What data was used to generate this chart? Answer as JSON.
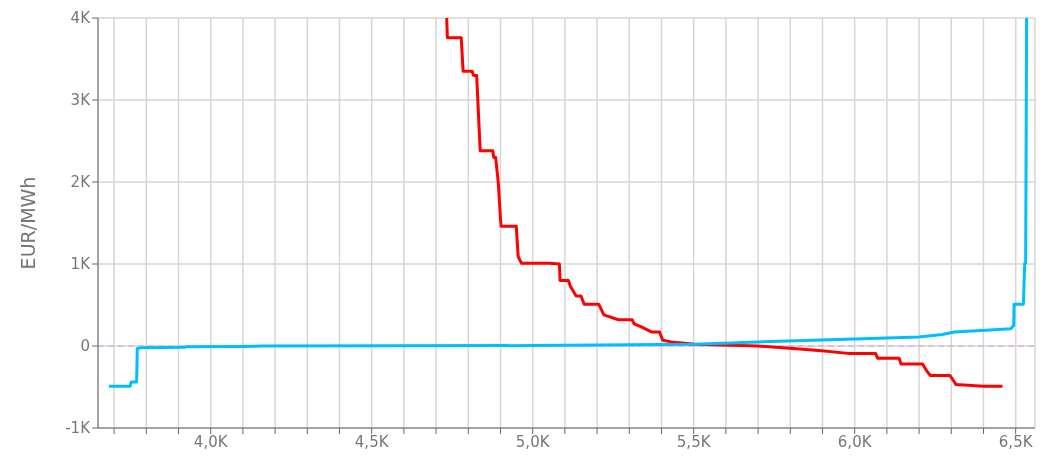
{
  "chart_data": {
    "type": "line",
    "ylabel": "EUR/MWh",
    "grid": true,
    "xlim": [
      3650,
      6560
    ],
    "xticks": [
      {
        "value": 3700,
        "label": null
      },
      {
        "value": 3800,
        "label": null
      },
      {
        "value": 3900,
        "label": null
      },
      {
        "value": 4000,
        "label": "4,0K"
      },
      {
        "value": 4100,
        "label": null
      },
      {
        "value": 4200,
        "label": null
      },
      {
        "value": 4300,
        "label": null
      },
      {
        "value": 4400,
        "label": null
      },
      {
        "value": 4500,
        "label": "4,5K"
      },
      {
        "value": 4600,
        "label": null
      },
      {
        "value": 4700,
        "label": null
      },
      {
        "value": 4800,
        "label": null
      },
      {
        "value": 4900,
        "label": null
      },
      {
        "value": 5000,
        "label": "5,0K"
      },
      {
        "value": 5100,
        "label": null
      },
      {
        "value": 5200,
        "label": null
      },
      {
        "value": 5300,
        "label": null
      },
      {
        "value": 5400,
        "label": null
      },
      {
        "value": 5500,
        "label": "5,5K"
      },
      {
        "value": 5600,
        "label": null
      },
      {
        "value": 5700,
        "label": null
      },
      {
        "value": 5800,
        "label": null
      },
      {
        "value": 5900,
        "label": null
      },
      {
        "value": 6000,
        "label": "6,0K"
      },
      {
        "value": 6100,
        "label": null
      },
      {
        "value": 6200,
        "label": null
      },
      {
        "value": 6300,
        "label": null
      },
      {
        "value": 6400,
        "label": null
      },
      {
        "value": 6500,
        "label": "6,5K"
      }
    ],
    "ylim": [
      -1000,
      4000
    ],
    "yticks": [
      {
        "value": -1000,
        "label": "-1K"
      },
      0,
      {
        "value": 1000,
        "label": "1K"
      },
      {
        "value": 2000,
        "label": "2K"
      },
      {
        "value": 3000,
        "label": "3K"
      },
      {
        "value": 4000,
        "label": "4K"
      }
    ],
    "ref_lines": [
      {
        "axis": "y",
        "value": 0,
        "color": "#d8b4e2",
        "line_style": "dashed"
      }
    ],
    "series": [
      {
        "color": "#ff0000",
        "x": [
          4733,
          4735,
          4778,
          4784,
          4812,
          4816,
          4826,
          4837,
          4876,
          4879,
          4885,
          4893,
          4900,
          4902,
          4949,
          4955,
          4965,
          5052,
          5083,
          5085,
          5111,
          5117,
          5135,
          5150,
          5160,
          5205,
          5221,
          5266,
          5309,
          5315,
          5339,
          5370,
          5394,
          5404,
          5430,
          5504,
          5699,
          5809,
          5906,
          5979,
          6065,
          6071,
          6138,
          6144,
          6211,
          6223,
          6235,
          6296,
          6315,
          6400,
          6459
        ],
        "values": [
          4000,
          3760,
          3760,
          3350,
          3350,
          3300,
          3300,
          2380,
          2380,
          2300,
          2300,
          2000,
          1550,
          1460,
          1460,
          1090,
          1010,
          1010,
          1000,
          800,
          800,
          730,
          610,
          610,
          510,
          510,
          380,
          320,
          320,
          270,
          230,
          170,
          170,
          70,
          50,
          20,
          0,
          -30,
          -60,
          -90,
          -90,
          -150,
          -150,
          -220,
          -220,
          -300,
          -360,
          -360,
          -470,
          -490,
          -490
        ]
      },
      {
        "color": "#00bfff",
        "x": [
          3684,
          3750,
          3753,
          3770,
          3772,
          3785,
          3920,
          3922,
          4100,
          4160,
          5000,
          5504,
          5699,
          5870,
          6052,
          6199,
          6272,
          6309,
          6394,
          6485,
          6494,
          6495,
          6524,
          6528,
          6531,
          6534
        ],
        "values": [
          -490,
          -490,
          -440,
          -440,
          -30,
          -20,
          -15,
          -10,
          -5,
          0,
          5,
          20,
          50,
          70,
          90,
          110,
          140,
          170,
          190,
          210,
          250,
          510,
          510,
          1010,
          1010,
          4000
        ]
      }
    ]
  }
}
